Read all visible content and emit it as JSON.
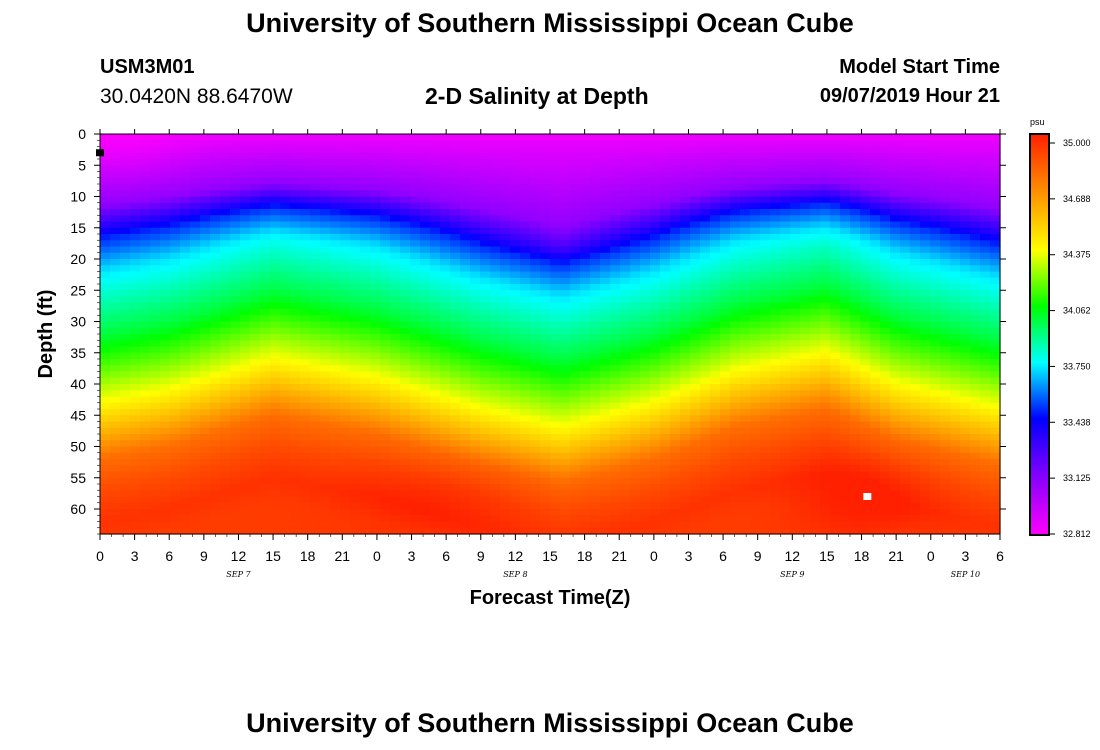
{
  "header": {
    "title": "University of Southern Mississippi Ocean Cube",
    "station_id": "USM3M01",
    "coordinates": "30.0420N 88.6470W",
    "plot_title": "2-D Salinity at Depth",
    "model_start_label": "Model Start Time",
    "model_start_value": "09/07/2019 Hour 21"
  },
  "footer": {
    "title": "University of Southern Mississippi Ocean Cube"
  },
  "colors": {
    "palette": [
      "#ff00ff",
      "#8a00ff",
      "#0000ff",
      "#00b4ff",
      "#00ffff",
      "#00ff00",
      "#ffff00",
      "#ffa000",
      "#ff2000"
    ]
  },
  "chart_data": {
    "type": "heatmap",
    "title": "2-D Salinity at Depth",
    "xlabel": "Forecast Time(Z)",
    "ylabel": "Depth (ft)",
    "units": "psu",
    "xlim_hours": [
      0,
      78
    ],
    "ylim": [
      0,
      64
    ],
    "x_tick_labels": [
      "0",
      "3",
      "6",
      "9",
      "12",
      "15",
      "18",
      "21",
      "0",
      "3",
      "6",
      "9",
      "12",
      "15",
      "18",
      "21",
      "0",
      "3",
      "6",
      "9",
      "12",
      "15",
      "18",
      "21",
      "0",
      "3",
      "6"
    ],
    "date_labels": [
      {
        "label": "SEP 7",
        "hour": 12
      },
      {
        "label": "SEP 8",
        "hour": 36
      },
      {
        "label": "SEP 9",
        "hour": 60
      },
      {
        "label": "SEP 10",
        "hour": 75
      }
    ],
    "y_ticks": [
      0,
      5,
      10,
      15,
      20,
      25,
      30,
      35,
      40,
      45,
      50,
      55,
      60
    ],
    "colorbar": {
      "label": "psu",
      "min": 32.812,
      "max": 35.0,
      "ticks": [
        "35.000",
        "34.688",
        "34.375",
        "34.062",
        "33.750",
        "33.438",
        "33.125",
        "32.812"
      ]
    },
    "salinity_profile": {
      "depths": [
        0,
        10,
        15,
        20,
        25,
        30,
        35,
        40,
        45,
        50,
        55,
        60,
        64
      ],
      "values": [
        32.85,
        33.1,
        33.5,
        33.72,
        33.85,
        33.98,
        34.15,
        34.33,
        34.55,
        34.78,
        34.88,
        34.95,
        34.92
      ]
    },
    "interface_depth_at_hour": [
      {
        "hour": 0,
        "depth": 22
      },
      {
        "hour": 6,
        "depth": 20
      },
      {
        "hour": 15,
        "depth": 15
      },
      {
        "hour": 24,
        "depth": 18
      },
      {
        "hour": 33,
        "depth": 23
      },
      {
        "hour": 40,
        "depth": 26
      },
      {
        "hour": 48,
        "depth": 22
      },
      {
        "hour": 55,
        "depth": 17
      },
      {
        "hour": 63,
        "depth": 14
      },
      {
        "hour": 69,
        "depth": 19
      },
      {
        "hour": 78,
        "depth": 23
      }
    ],
    "markers": [
      {
        "name": "surface-point",
        "hour": 0,
        "depth": 3,
        "color": "#000000"
      },
      {
        "name": "bottom-point",
        "hour": 66.5,
        "depth": 58,
        "color": "#ffffff"
      }
    ]
  }
}
